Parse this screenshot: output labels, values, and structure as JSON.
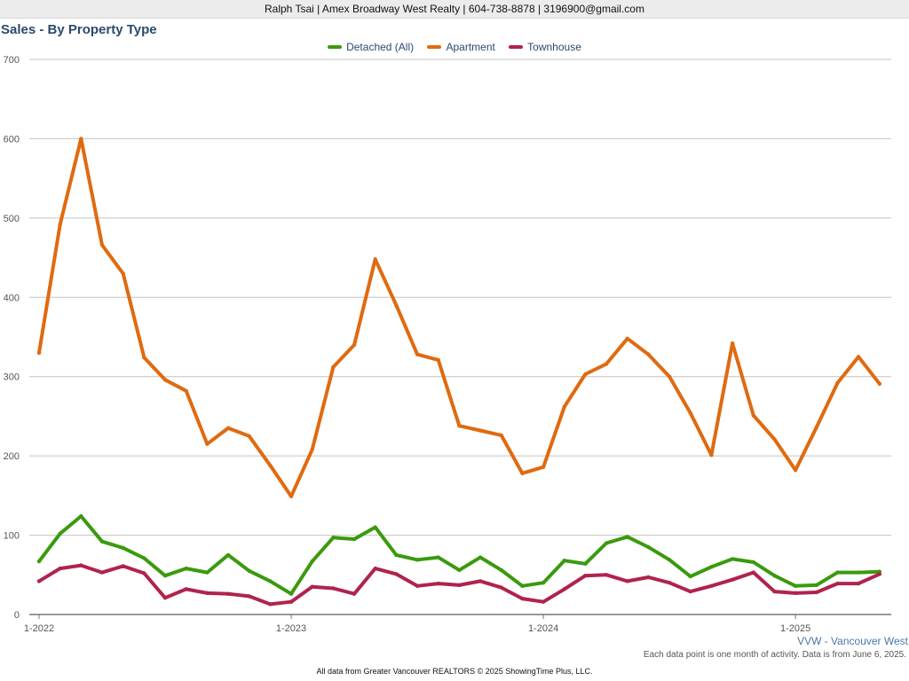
{
  "header": {
    "contact": "Ralph Tsai | Amex Broadway West Realty | 604-738-8878 | 3196900@gmail.com"
  },
  "chart_data": {
    "type": "line",
    "title": "Sales - By Property Type",
    "xlabel": "",
    "ylabel": "",
    "ylim": [
      0,
      700
    ],
    "yticks": [
      0,
      100,
      200,
      300,
      400,
      500,
      600,
      700
    ],
    "grid": true,
    "legend_position": "top-center",
    "x_tick_labels": [
      {
        "index": 0,
        "label": "1-2022"
      },
      {
        "index": 12,
        "label": "1-2023"
      },
      {
        "index": 24,
        "label": "1-2024"
      },
      {
        "index": 36,
        "label": "1-2025"
      }
    ],
    "series": [
      {
        "name": "Detached (All)",
        "color": "#3a9a0e",
        "values": [
          67,
          102,
          124,
          92,
          84,
          71,
          49,
          58,
          53,
          75,
          55,
          42,
          26,
          67,
          97,
          95,
          110,
          75,
          69,
          72,
          56,
          72,
          56,
          36,
          40,
          68,
          64,
          90,
          98,
          85,
          69,
          48,
          60,
          70,
          66,
          49,
          36,
          37,
          53,
          53,
          54
        ]
      },
      {
        "name": "Apartment",
        "color": "#e06a10",
        "values": [
          330,
          492,
          600,
          466,
          430,
          324,
          296,
          282,
          215,
          235,
          225,
          188,
          149,
          208,
          312,
          340,
          448,
          390,
          328,
          321,
          238,
          232,
          226,
          178,
          186,
          262,
          303,
          316,
          348,
          328,
          300,
          254,
          201,
          342,
          251,
          221,
          182,
          236,
          292,
          325,
          291
        ]
      },
      {
        "name": "Townhouse",
        "color": "#b0234c",
        "values": [
          42,
          58,
          62,
          53,
          61,
          52,
          21,
          32,
          27,
          26,
          23,
          13,
          16,
          35,
          33,
          26,
          58,
          51,
          36,
          39,
          37,
          42,
          34,
          20,
          16,
          32,
          49,
          50,
          42,
          47,
          40,
          29,
          36,
          44,
          53,
          29,
          27,
          28,
          39,
          39,
          51
        ]
      }
    ]
  },
  "region_label": "VVW - Vancouver West",
  "note": "Each data point is one month of activity. Data is from June 6, 2025.",
  "footer": "All data from Greater Vancouver REALTORS © 2025 ShowingTime Plus, LLC."
}
